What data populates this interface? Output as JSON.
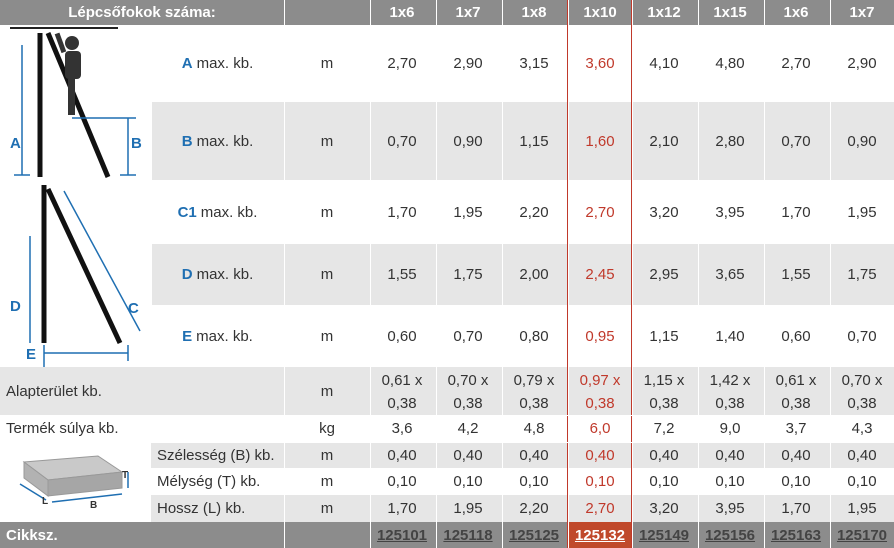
{
  "header": {
    "title": "Lépcsőfokok száma:",
    "columns": [
      "1x6",
      "1x7",
      "1x8",
      "1x10",
      "1x12",
      "1x15",
      "1x6",
      "1x7"
    ]
  },
  "diagram": {
    "top_labels": [
      "A",
      "B"
    ],
    "bottom_labels": [
      "C",
      "D",
      "E"
    ],
    "box_labels": [
      "T",
      "L",
      "B"
    ]
  },
  "rows": [
    {
      "letter": "A",
      "text": "max. kb.",
      "unit": "m",
      "values": [
        "2,70",
        "2,90",
        "3,15",
        "3,60",
        "4,10",
        "4,80",
        "2,70",
        "2,90"
      ]
    },
    {
      "letter": "B",
      "text": "max. kb.",
      "unit": "m",
      "values": [
        "0,70",
        "0,90",
        "1,15",
        "1,60",
        "2,10",
        "2,80",
        "0,70",
        "0,90"
      ]
    },
    {
      "letter": "C1",
      "text": "max. kb.",
      "unit": "m",
      "values": [
        "1,70",
        "1,95",
        "2,20",
        "2,70",
        "3,20",
        "3,95",
        "1,70",
        "1,95"
      ]
    },
    {
      "letter": "D",
      "text": "max. kb.",
      "unit": "m",
      "values": [
        "1,55",
        "1,75",
        "2,00",
        "2,45",
        "2,95",
        "3,65",
        "1,55",
        "1,75"
      ]
    },
    {
      "letter": "E",
      "text": "max. kb.",
      "unit": "m",
      "values": [
        "0,60",
        "0,70",
        "0,80",
        "0,95",
        "1,15",
        "1,40",
        "0,60",
        "0,70"
      ]
    }
  ],
  "footprint": {
    "label": "Alapterület kb.",
    "unit": "m",
    "line1": [
      "0,61 x",
      "0,70 x",
      "0,79 x",
      "0,97 x",
      "1,15 x",
      "1,42 x",
      "0,61 x",
      "0,70 x"
    ],
    "line2": [
      "0,38",
      "0,38",
      "0,38",
      "0,38",
      "0,38",
      "0,38",
      "0,38",
      "0,38"
    ]
  },
  "weight": {
    "label": "Termék súlya kb.",
    "unit": "kg",
    "values": [
      "3,6",
      "4,2",
      "4,8",
      "6,0",
      "7,2",
      "9,0",
      "3,7",
      "4,3"
    ]
  },
  "dims": [
    {
      "label": "Szélesség (B) kb.",
      "unit": "m",
      "values": [
        "0,40",
        "0,40",
        "0,40",
        "0,40",
        "0,40",
        "0,40",
        "0,40",
        "0,40"
      ]
    },
    {
      "label": "Mélység (T) kb.",
      "unit": "m",
      "values": [
        "0,10",
        "0,10",
        "0,10",
        "0,10",
        "0,10",
        "0,10",
        "0,10",
        "0,10"
      ]
    },
    {
      "label": "Hossz (L) kb.",
      "unit": "m",
      "values": [
        "1,70",
        "1,95",
        "2,20",
        "2,70",
        "3,20",
        "3,95",
        "1,70",
        "1,95"
      ]
    }
  ],
  "footer": {
    "label": "Cikksz.",
    "codes": [
      "125101",
      "125118",
      "125125",
      "125132",
      "125149",
      "125156",
      "125163",
      "125170"
    ]
  },
  "colors": {
    "header_gray": "#8c8c8c",
    "row_shade": "#e6e6e6",
    "highlight_text": "#c0392b",
    "highlight_fill": "#c0492b",
    "letter_blue": "#1f6fb2"
  }
}
